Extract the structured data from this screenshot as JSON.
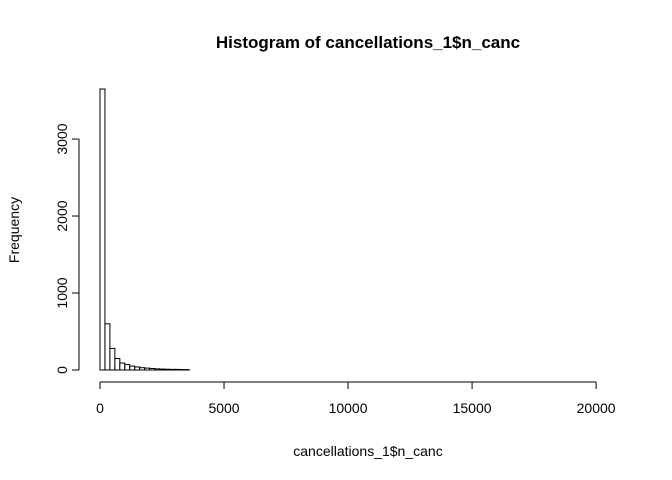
{
  "chart_data": {
    "type": "bar",
    "title": "Histogram of cancellations_1$n_canc",
    "xlabel": "cancellations_1$n_canc",
    "ylabel": "Frequency",
    "bin_width": 200,
    "bin_start": 0,
    "values": [
      3650,
      600,
      280,
      150,
      90,
      70,
      50,
      40,
      30,
      25,
      20,
      15,
      12,
      10,
      8,
      8,
      6,
      5,
      0,
      0,
      0,
      0,
      0,
      0,
      0,
      0,
      0,
      0,
      0,
      0,
      0,
      0,
      0,
      0,
      0,
      0,
      0,
      0,
      0,
      0,
      0,
      0,
      0,
      0,
      0,
      0,
      0,
      0,
      0,
      0,
      0,
      0,
      0,
      0,
      0,
      0,
      0,
      0,
      0,
      0,
      0,
      0,
      0,
      0,
      0,
      0,
      0,
      0,
      0,
      0,
      0,
      0,
      0,
      0,
      0,
      0,
      0,
      0,
      0,
      0,
      0,
      0,
      0,
      0,
      0,
      0,
      0,
      0,
      0,
      0,
      0,
      0,
      0,
      0,
      0,
      0,
      0,
      0,
      0,
      0,
      0,
      0,
      0
    ],
    "xlim": [
      0,
      20600
    ],
    "ylim": [
      0,
      3650
    ],
    "x_ticks": [
      0,
      5000,
      10000,
      15000,
      20000
    ],
    "y_ticks": [
      0,
      1000,
      2000,
      3000
    ],
    "grid": false,
    "legend": "none"
  }
}
